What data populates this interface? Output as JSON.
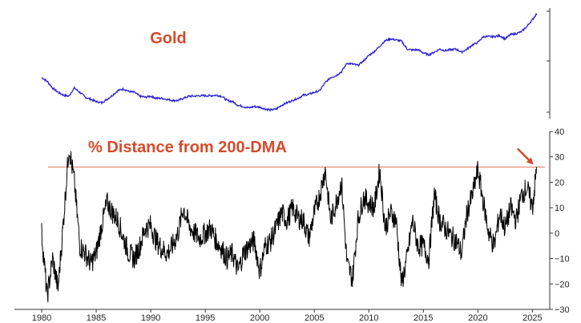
{
  "chart_data": [
    {
      "type": "line",
      "title": "Gold",
      "title_color": "#d64a2a",
      "line_color": "#2e1fd6",
      "x": [
        1980.0,
        1980.5,
        1981.0,
        1981.5,
        1982.0,
        1982.5,
        1983.0,
        1983.5,
        1984.0,
        1984.5,
        1985.0,
        1985.5,
        1986.0,
        1986.5,
        1987.0,
        1987.5,
        1988.0,
        1988.5,
        1989.0,
        1989.5,
        1990.0,
        1990.5,
        1991.0,
        1991.5,
        1992.0,
        1992.5,
        1993.0,
        1993.5,
        1994.0,
        1994.5,
        1995.0,
        1995.5,
        1996.0,
        1996.5,
        1997.0,
        1997.5,
        1998.0,
        1998.5,
        1999.0,
        1999.5,
        2000.0,
        2000.5,
        2001.0,
        2001.5,
        2002.0,
        2002.5,
        2003.0,
        2003.5,
        2004.0,
        2004.5,
        2005.0,
        2005.5,
        2006.0,
        2006.5,
        2007.0,
        2007.5,
        2008.0,
        2008.5,
        2009.0,
        2009.5,
        2010.0,
        2010.5,
        2011.0,
        2011.5,
        2012.0,
        2012.5,
        2013.0,
        2013.5,
        2014.0,
        2014.5,
        2015.0,
        2015.5,
        2016.0,
        2016.5,
        2017.0,
        2017.5,
        2018.0,
        2018.5,
        2019.0,
        2019.5,
        2020.0,
        2020.5,
        2021.0,
        2021.5,
        2022.0,
        2022.5,
        2023.0,
        2023.5,
        2024.0,
        2024.5,
        2025.0,
        2025.4
      ],
      "y": [
        620,
        560,
        470,
        420,
        390,
        380,
        470,
        420,
        370,
        350,
        330,
        320,
        350,
        390,
        440,
        460,
        430,
        420,
        380,
        370,
        380,
        360,
        360,
        350,
        340,
        340,
        360,
        380,
        380,
        385,
        385,
        385,
        390,
        380,
        340,
        330,
        300,
        290,
        280,
        290,
        285,
        272,
        265,
        272,
        300,
        320,
        340,
        360,
        390,
        400,
        420,
        440,
        540,
        620,
        650,
        720,
        900,
        880,
        850,
        950,
        1100,
        1220,
        1400,
        1620,
        1700,
        1650,
        1600,
        1300,
        1270,
        1280,
        1180,
        1120,
        1200,
        1300,
        1250,
        1280,
        1300,
        1200,
        1300,
        1450,
        1550,
        1800,
        1800,
        1800,
        1850,
        1700,
        1900,
        1950,
        2050,
        2350,
        2800,
        3300
      ],
      "scale": "log",
      "xlim": [
        1980,
        2026
      ],
      "ylim": [
        250,
        3500
      ],
      "grid": false
    },
    {
      "type": "line",
      "title": "% Distance from 200-DMA",
      "title_color": "#d64a2a",
      "line_color": "#000000",
      "reference_line": {
        "y": 26,
        "color": "#e8765c"
      },
      "annotation": {
        "type": "arrow",
        "color": "#d64a2a",
        "points_to": [
          2025.1,
          26
        ]
      },
      "x": [
        1980.0,
        1980.5,
        1981.0,
        1981.5,
        1982.0,
        1982.5,
        1983.0,
        1983.5,
        1984.0,
        1984.5,
        1985.0,
        1985.5,
        1986.0,
        1986.5,
        1987.0,
        1987.5,
        1988.0,
        1988.5,
        1989.0,
        1989.5,
        1990.0,
        1990.5,
        1991.0,
        1991.5,
        1992.0,
        1992.5,
        1993.0,
        1993.5,
        1994.0,
        1994.5,
        1995.0,
        1995.5,
        1996.0,
        1996.5,
        1997.0,
        1997.5,
        1998.0,
        1998.5,
        1999.0,
        1999.5,
        2000.0,
        2000.5,
        2001.0,
        2001.5,
        2002.0,
        2002.5,
        2003.0,
        2003.5,
        2004.0,
        2004.5,
        2005.0,
        2005.5,
        2006.0,
        2006.5,
        2007.0,
        2007.5,
        2008.0,
        2008.5,
        2009.0,
        2009.5,
        2010.0,
        2010.5,
        2011.0,
        2011.5,
        2012.0,
        2012.5,
        2013.0,
        2013.5,
        2014.0,
        2014.5,
        2015.0,
        2015.5,
        2016.0,
        2016.5,
        2017.0,
        2017.5,
        2018.0,
        2018.5,
        2019.0,
        2019.5,
        2020.0,
        2020.5,
        2021.0,
        2021.5,
        2022.0,
        2022.5,
        2023.0,
        2023.5,
        2024.0,
        2024.5,
        2025.0,
        2025.4
      ],
      "y": [
        0,
        -25,
        -10,
        -22,
        5,
        34,
        20,
        -5,
        -8,
        -12,
        -8,
        3,
        12,
        8,
        5,
        -2,
        -8,
        -10,
        -5,
        2,
        3,
        -3,
        -6,
        -8,
        -5,
        0,
        10,
        3,
        0,
        -2,
        0,
        2,
        -3,
        -6,
        -10,
        -8,
        -15,
        -8,
        -5,
        -3,
        -15,
        -5,
        -3,
        2,
        8,
        5,
        10,
        6,
        5,
        -2,
        8,
        15,
        25,
        5,
        12,
        20,
        -12,
        -18,
        5,
        14,
        12,
        10,
        25,
        2,
        8,
        5,
        -20,
        -10,
        5,
        -5,
        -5,
        -10,
        15,
        5,
        2,
        -1,
        -3,
        -8,
        8,
        15,
        25,
        12,
        0,
        -5,
        8,
        2,
        10,
        5,
        15,
        18,
        10,
        26
      ],
      "xlim": [
        1980,
        2026
      ],
      "ylim": [
        -30,
        40
      ],
      "yticks": [
        "40",
        "30",
        "20",
        "10",
        "0",
        "−10",
        "−20",
        "−30"
      ],
      "yticks_values": [
        40,
        30,
        20,
        10,
        0,
        -10,
        -20,
        -30
      ],
      "grid": false
    }
  ],
  "x_axis": {
    "ticks": [
      "1980",
      "1985",
      "1990",
      "1995",
      "2000",
      "2005",
      "2010",
      "2015",
      "2020",
      "2025"
    ],
    "tick_values": [
      1980,
      1985,
      1990,
      1995,
      2000,
      2005,
      2010,
      2015,
      2020,
      2025
    ]
  }
}
